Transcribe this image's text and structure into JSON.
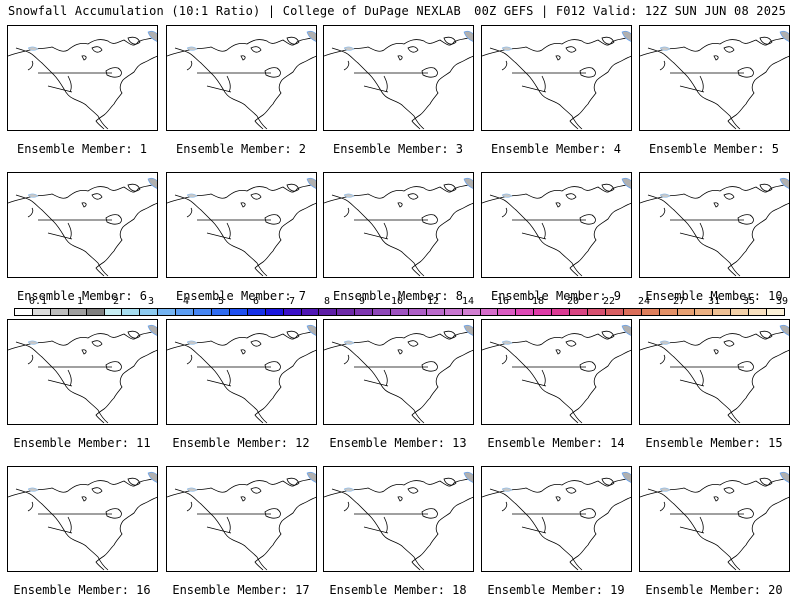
{
  "header": {
    "left": "Snowfall Accumulation (10:1 Ratio) | College of DuPage NEXLAB",
    "right": "00Z GEFS | F012 Valid: 12Z SUN JUN 08 2025"
  },
  "panels": [
    {
      "label": "Ensemble Member: 1"
    },
    {
      "label": "Ensemble Member: 2"
    },
    {
      "label": "Ensemble Member: 3"
    },
    {
      "label": "Ensemble Member: 4"
    },
    {
      "label": "Ensemble Member: 5"
    },
    {
      "label": "Ensemble Member: 6"
    },
    {
      "label": "Ensemble Member: 7"
    },
    {
      "label": "Ensemble Member: 8"
    },
    {
      "label": "Ensemble Member: 9"
    },
    {
      "label": "Ensemble Member: 10"
    },
    {
      "label": "Ensemble Member: 11"
    },
    {
      "label": "Ensemble Member: 12"
    },
    {
      "label": "Ensemble Member: 13"
    },
    {
      "label": "Ensemble Member: 14"
    },
    {
      "label": "Ensemble Member: 15"
    },
    {
      "label": "Ensemble Member: 16"
    },
    {
      "label": "Ensemble Member: 17"
    },
    {
      "label": "Ensemble Member: 18"
    },
    {
      "label": "Ensemble Member: 19"
    },
    {
      "label": "Ensemble Member: 20"
    }
  ],
  "colorbar": {
    "labels": [
      "0.1",
      "1",
      "2",
      "3",
      "4",
      "5",
      "6",
      "7",
      "8",
      "9",
      "10",
      "12",
      "14",
      "16",
      "18",
      "20",
      "22",
      "24",
      "27",
      "31",
      "35",
      "39"
    ],
    "colors": [
      "#ffffff",
      "#dcdcdc",
      "#bdbdbd",
      "#9e9e9e",
      "#7f7f7f",
      "#c6ecf2",
      "#a5dcee",
      "#8ccaf0",
      "#74b4f2",
      "#5b9df2",
      "#4585f2",
      "#2f6cf0",
      "#1e4ff0",
      "#1530e8",
      "#1a16de",
      "#3b10c8",
      "#4f16b4",
      "#5e1ea6",
      "#6e2aa8",
      "#7e36b0",
      "#8e46b8",
      "#9e52c0",
      "#ad5ec6",
      "#bb6acc",
      "#c875d0",
      "#d27ed2",
      "#d66ccb",
      "#da5ac2",
      "#dd48b6",
      "#de3aa8",
      "#dc3a94",
      "#d94482",
      "#d75070",
      "#d85e62",
      "#db6e5a",
      "#df7f5c",
      "#e39066",
      "#e7a072",
      "#ebb082",
      "#efc094",
      "#f3d0a8",
      "#f7dfbe",
      "#fbefd6"
    ]
  }
}
